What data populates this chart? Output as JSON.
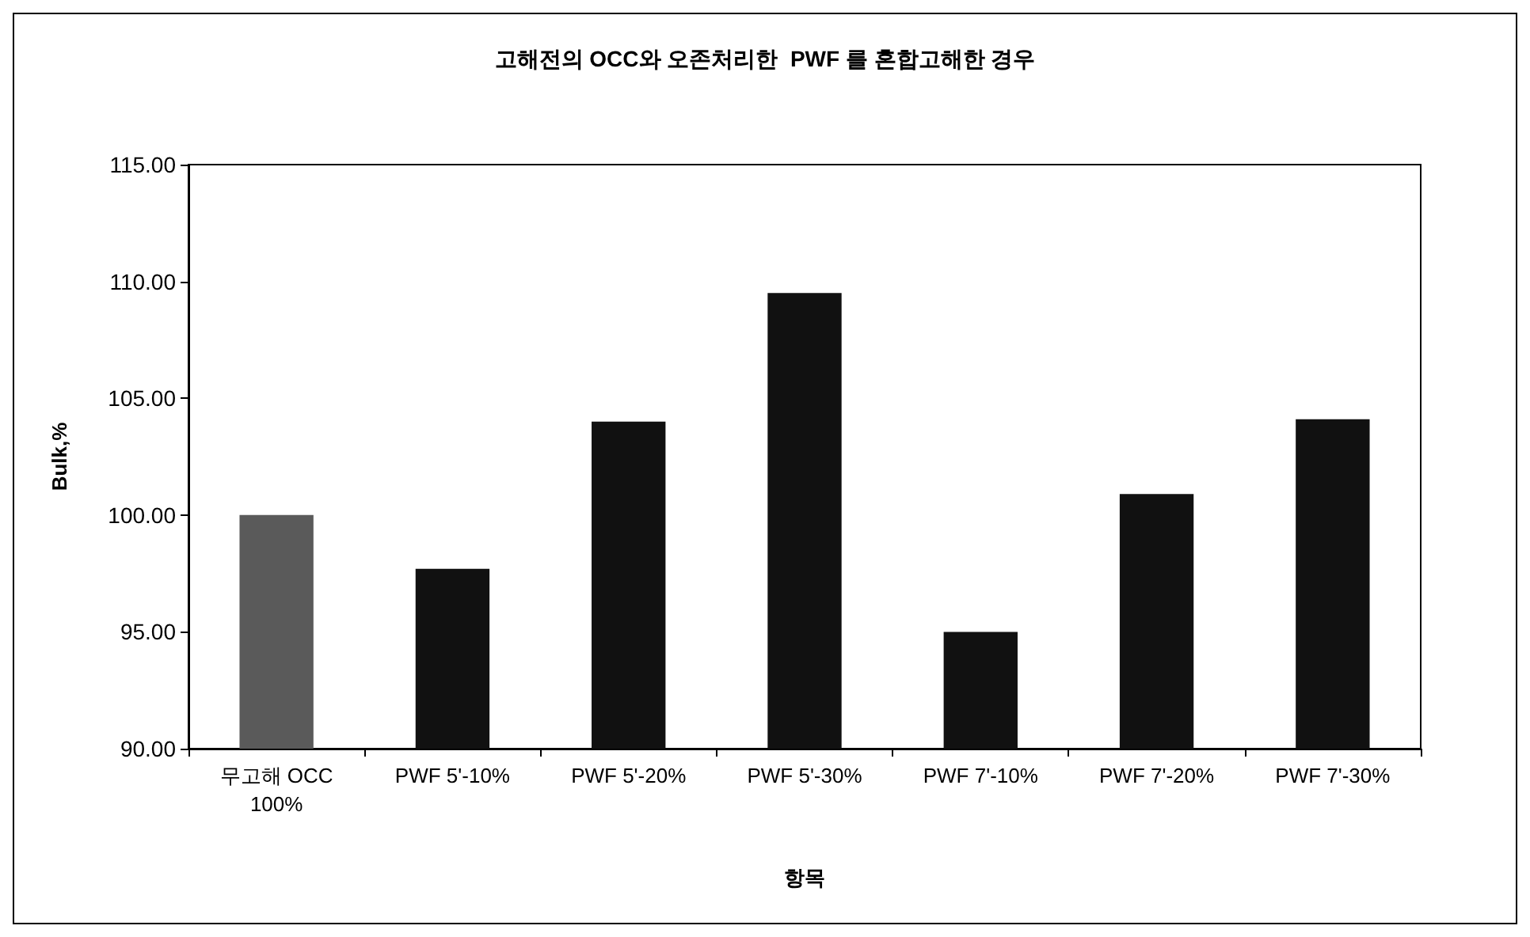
{
  "chart_data": {
    "type": "bar",
    "title": "고해전의 OCC와 오존처리한  PWF 를 혼합고해한 경우",
    "xlabel": "항목",
    "ylabel": "Bulk,%",
    "categories": [
      "무고해 OCC\n100%",
      "PWF 5'-10%",
      "PWF 5'-20%",
      "PWF 5'-30%",
      "PWF 7'-10%",
      "PWF 7'-20%",
      "PWF 7'-30%"
    ],
    "values": [
      100.0,
      97.7,
      104.0,
      109.5,
      95.0,
      100.9,
      104.1
    ],
    "colors": [
      "#5a5a5a",
      "#111111",
      "#111111",
      "#111111",
      "#111111",
      "#111111",
      "#111111"
    ],
    "ylim": [
      90,
      115
    ],
    "yticks": [
      {
        "value": 90,
        "label": "90.00"
      },
      {
        "value": 95,
        "label": "95.00"
      },
      {
        "value": 100,
        "label": "100.00"
      },
      {
        "value": 105,
        "label": "105.00"
      },
      {
        "value": 110,
        "label": "110.00"
      },
      {
        "value": 115,
        "label": "115.00"
      }
    ],
    "grid": false
  }
}
